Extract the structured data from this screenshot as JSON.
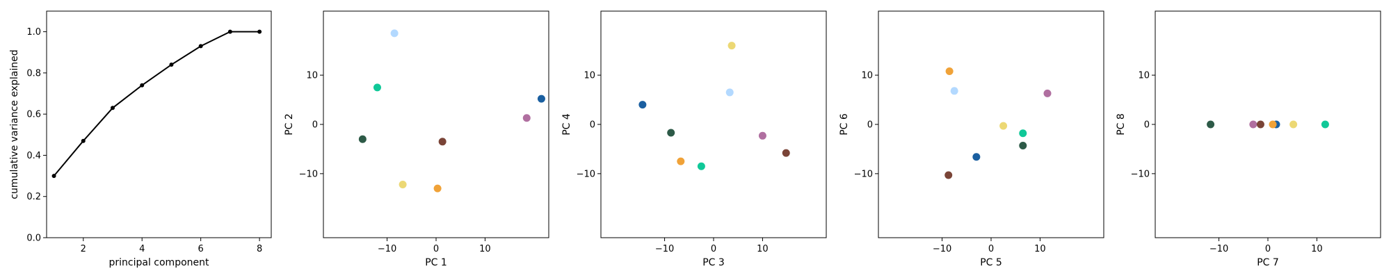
{
  "chart_data": [
    {
      "type": "line",
      "xlabel": "principal component",
      "ylabel": "cumulative variance explained",
      "xlim": [
        0.75,
        8.4
      ],
      "ylim": [
        0.0,
        1.1
      ],
      "xticks": [
        2,
        4,
        6,
        8
      ],
      "xtick_labels": [
        "2",
        "4",
        "6",
        "8"
      ],
      "yticks": [
        0.0,
        0.2,
        0.4,
        0.6,
        0.8,
        1.0
      ],
      "ytick_labels": [
        "0.0",
        "0.2",
        "0.4",
        "0.6",
        "0.8",
        "1.0"
      ],
      "x": [
        1,
        2,
        3,
        4,
        5,
        6,
        7,
        8
      ],
      "y": [
        0.3,
        0.47,
        0.63,
        0.74,
        0.84,
        0.93,
        1.0,
        1.0
      ],
      "color": "#000000",
      "grid": false
    },
    {
      "type": "scatter",
      "xlabel": "PC 1",
      "ylabel": "PC 2",
      "xlim": [
        -23,
        23
      ],
      "ylim": [
        -23,
        23
      ],
      "xticks": [
        -10,
        0,
        10
      ],
      "xtick_labels": [
        "−10",
        "0",
        "10"
      ],
      "yticks": [
        -10,
        0,
        10
      ],
      "ytick_labels": [
        "−10",
        "0",
        "10"
      ],
      "points": [
        {
          "x": -8.5,
          "y": 18.5,
          "color": "#b3d9ff"
        },
        {
          "x": -12.0,
          "y": 7.5,
          "color": "#10c898"
        },
        {
          "x": 21.5,
          "y": 5.2,
          "color": "#1a5fa0"
        },
        {
          "x": 18.5,
          "y": 1.3,
          "color": "#b06fa0"
        },
        {
          "x": -15.0,
          "y": -3.0,
          "color": "#2d5a47"
        },
        {
          "x": 1.3,
          "y": -3.5,
          "color": "#7a4437"
        },
        {
          "x": -6.8,
          "y": -12.2,
          "color": "#ecd874"
        },
        {
          "x": 0.3,
          "y": -13.0,
          "color": "#f0a238"
        }
      ],
      "grid": false
    },
    {
      "type": "scatter",
      "xlabel": "PC 3",
      "ylabel": "PC 4",
      "xlim": [
        -23,
        23
      ],
      "ylim": [
        -23,
        23
      ],
      "xticks": [
        -10,
        0,
        10
      ],
      "xtick_labels": [
        "−10",
        "0",
        "10"
      ],
      "yticks": [
        -10,
        0,
        10
      ],
      "ytick_labels": [
        "−10",
        "0",
        "10"
      ],
      "points": [
        {
          "x": 3.7,
          "y": 16.0,
          "color": "#ecd874"
        },
        {
          "x": 3.3,
          "y": 6.5,
          "color": "#b3d9ff"
        },
        {
          "x": -14.5,
          "y": 4.0,
          "color": "#1a5fa0"
        },
        {
          "x": -8.7,
          "y": -1.7,
          "color": "#2d5a47"
        },
        {
          "x": 10.0,
          "y": -2.3,
          "color": "#b06fa0"
        },
        {
          "x": 14.8,
          "y": -5.8,
          "color": "#7a4437"
        },
        {
          "x": -6.7,
          "y": -7.5,
          "color": "#f0a238"
        },
        {
          "x": -2.5,
          "y": -8.5,
          "color": "#10c898"
        }
      ],
      "grid": false
    },
    {
      "type": "scatter",
      "xlabel": "PC 5",
      "ylabel": "PC 6",
      "xlim": [
        -23,
        23
      ],
      "ylim": [
        -23,
        23
      ],
      "xticks": [
        -10,
        0,
        10
      ],
      "xtick_labels": [
        "−10",
        "0",
        "10"
      ],
      "yticks": [
        -10,
        0,
        10
      ],
      "ytick_labels": [
        "−10",
        "0",
        "10"
      ],
      "points": [
        {
          "x": -8.5,
          "y": 10.8,
          "color": "#f0a238"
        },
        {
          "x": -7.5,
          "y": 6.8,
          "color": "#b3d9ff"
        },
        {
          "x": 11.5,
          "y": 6.3,
          "color": "#b06fa0"
        },
        {
          "x": 2.5,
          "y": -0.3,
          "color": "#ecd874"
        },
        {
          "x": 6.5,
          "y": -1.8,
          "color": "#10c898"
        },
        {
          "x": 6.5,
          "y": -4.3,
          "color": "#2d5a47"
        },
        {
          "x": -3.0,
          "y": -6.6,
          "color": "#1a5fa0"
        },
        {
          "x": -8.7,
          "y": -10.3,
          "color": "#7a4437"
        }
      ],
      "grid": false
    },
    {
      "type": "scatter",
      "xlabel": "PC 7",
      "ylabel": "PC 8",
      "xlim": [
        -23,
        23
      ],
      "ylim": [
        -23,
        23
      ],
      "xticks": [
        -10,
        0,
        10
      ],
      "xtick_labels": [
        "−10",
        "0",
        "10"
      ],
      "yticks": [
        -10,
        0,
        10
      ],
      "ytick_labels": [
        "−10",
        "0",
        "10"
      ],
      "points": [
        {
          "x": -11.7,
          "y": 0.0,
          "color": "#2d5a47"
        },
        {
          "x": -3.0,
          "y": 0.0,
          "color": "#b06fa0"
        },
        {
          "x": -1.5,
          "y": 0.0,
          "color": "#7a4437"
        },
        {
          "x": 1.7,
          "y": 0.0,
          "color": "#1a5fa0"
        },
        {
          "x": 1.0,
          "y": 0.0,
          "color": "#f0a238"
        },
        {
          "x": 5.2,
          "y": 0.0,
          "color": "#ecd874"
        },
        {
          "x": 11.7,
          "y": 0.0,
          "color": "#10c898"
        }
      ],
      "grid": false
    }
  ]
}
